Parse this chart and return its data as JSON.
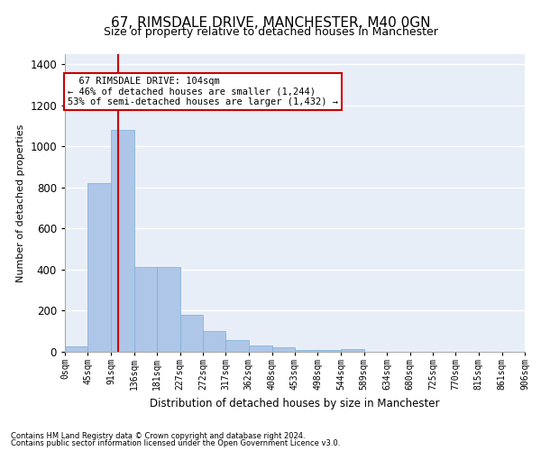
{
  "title": "67, RIMSDALE DRIVE, MANCHESTER, M40 0GN",
  "subtitle": "Size of property relative to detached houses in Manchester",
  "xlabel": "Distribution of detached houses by size in Manchester",
  "ylabel": "Number of detached properties",
  "footnote1": "Contains HM Land Registry data © Crown copyright and database right 2024.",
  "footnote2": "Contains public sector information licensed under the Open Government Licence v3.0.",
  "bar_edges": [
    0,
    45,
    91,
    136,
    181,
    227,
    272,
    317,
    362,
    408,
    453,
    498,
    544,
    589,
    634,
    680,
    725,
    770,
    815,
    861,
    906
  ],
  "bar_heights": [
    25,
    820,
    1080,
    415,
    415,
    180,
    100,
    55,
    30,
    20,
    10,
    10,
    15,
    0,
    0,
    0,
    0,
    0,
    0,
    0
  ],
  "bar_color": "#aec6e8",
  "bar_edgecolor": "#7aafd4",
  "vline_x": 104,
  "vline_color": "#cc0000",
  "ylim": [
    0,
    1450
  ],
  "annotation_text": "  67 RIMSDALE DRIVE: 104sqm\n← 46% of detached houses are smaller (1,244)\n53% of semi-detached houses are larger (1,432) →",
  "annotation_box_edgecolor": "#cc0000",
  "annotation_box_facecolor": "#ffffff",
  "tick_labels": [
    "0sqm",
    "45sqm",
    "91sqm",
    "136sqm",
    "181sqm",
    "227sqm",
    "272sqm",
    "317sqm",
    "362sqm",
    "408sqm",
    "453sqm",
    "498sqm",
    "544sqm",
    "589sqm",
    "634sqm",
    "680sqm",
    "725sqm",
    "770sqm",
    "815sqm",
    "861sqm",
    "906sqm"
  ],
  "background_color": "#e8eef7",
  "grid_color": "#ffffff",
  "title_fontsize": 11,
  "subtitle_fontsize": 9,
  "annotation_fontsize": 7.5,
  "tick_fontsize": 7,
  "ylabel_fontsize": 8,
  "xlabel_fontsize": 8.5
}
